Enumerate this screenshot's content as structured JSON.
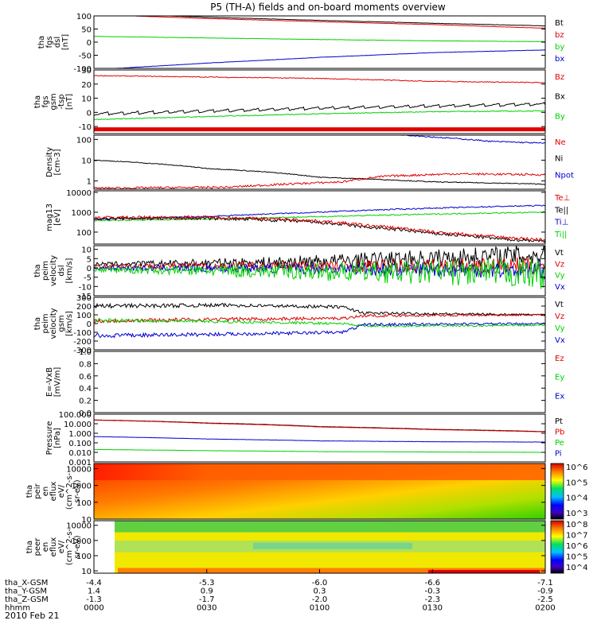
{
  "title": "P5 (TH-A) fields and on-board moments overview",
  "date": "2010 Feb 21",
  "x_axis": {
    "rows": [
      {
        "label": "tha_X-GSM",
        "values": [
          "-4.4",
          "-5.3",
          "-6.0",
          "-6.6",
          "-7.1"
        ]
      },
      {
        "label": "tha_Y-GSM",
        "values": [
          "1.4",
          "0.9",
          "0.3",
          "-0.3",
          "-0.9"
        ]
      },
      {
        "label": "tha_Z-GSM",
        "values": [
          "-1.3",
          "-1.7",
          "-2.0",
          "-2.3",
          "-2.5"
        ]
      },
      {
        "label": "hhmm",
        "values": [
          "0000",
          "0030",
          "0100",
          "0130",
          "0200"
        ]
      }
    ]
  },
  "colors": {
    "black": "#000000",
    "red": "#e00000",
    "green": "#00d000",
    "blue": "#0000d0"
  },
  "colorbar_a_ticks": [
    "10^6",
    "10^5",
    "10^4",
    "10^3"
  ],
  "colorbar_b_ticks": [
    "10^8",
    "10^7",
    "10^6",
    "10^5",
    "10^4"
  ],
  "chart_data": [
    {
      "type": "line",
      "id": "fgs_dsl",
      "ylabel": [
        "tha",
        "fgs",
        "dsl",
        "[nT]"
      ],
      "ylim": [
        -100,
        100
      ],
      "yscale": "linear",
      "ticks": [
        "100",
        "50",
        "0",
        "-50",
        "-100"
      ],
      "tick_values": [
        100,
        50,
        0,
        -50,
        -100
      ],
      "legend": [
        {
          "name": "Bt",
          "color": "black"
        },
        {
          "name": "bz",
          "color": "red"
        },
        {
          "name": "by",
          "color": "green"
        },
        {
          "name": "bx",
          "color": "blue"
        }
      ],
      "series": [
        {
          "name": "Bt",
          "color": "black",
          "x": [
            0,
            0.25,
            0.5,
            0.75,
            1
          ],
          "y": [
            110,
            95,
            83,
            72,
            62
          ],
          "noise": 0.5
        },
        {
          "name": "bz",
          "color": "red",
          "x": [
            0,
            0.25,
            0.5,
            0.75,
            1
          ],
          "y": [
            105,
            90,
            78,
            67,
            53
          ],
          "noise": 0.5
        },
        {
          "name": "by",
          "color": "green",
          "x": [
            0,
            0.25,
            0.5,
            0.75,
            1
          ],
          "y": [
            22,
            16,
            10,
            5,
            2
          ],
          "noise": 0.5
        },
        {
          "name": "bx",
          "color": "blue",
          "x": [
            0,
            0.25,
            0.5,
            0.75,
            1
          ],
          "y": [
            -105,
            -80,
            -58,
            -40,
            -30
          ],
          "noise": 0.5
        }
      ]
    },
    {
      "type": "line",
      "id": "fgs_gsm",
      "ylabel": [
        "tha",
        "fgs",
        "gsm",
        "-tsp",
        "[nT]"
      ],
      "ylim": [
        -15,
        30
      ],
      "yscale": "linear",
      "ticks": [
        "30",
        "20",
        "10",
        "0",
        "-10"
      ],
      "tick_values": [
        30,
        20,
        10,
        0,
        -10
      ],
      "legend": [
        {
          "name": "Bz",
          "color": "red"
        },
        {
          "name": "Bx",
          "color": "black"
        },
        {
          "name": "By",
          "color": "green"
        }
      ],
      "flag_bar": {
        "color": "red",
        "y": -12
      },
      "series": [
        {
          "name": "Bz",
          "color": "red",
          "x": [
            0,
            0.25,
            0.5,
            0.75,
            1
          ],
          "y": [
            26,
            25,
            24,
            22,
            21
          ],
          "noise": 0.3
        },
        {
          "name": "Bx",
          "color": "black",
          "x": [
            0,
            0.25,
            0.5,
            0.75,
            1
          ],
          "y": [
            -1,
            1,
            3,
            4.5,
            6
          ],
          "noise": 0.3,
          "sawtooth": 2
        },
        {
          "name": "By",
          "color": "green",
          "x": [
            0,
            0.25,
            0.5,
            0.75,
            1
          ],
          "y": [
            -5,
            -3,
            -1,
            0.5,
            1
          ],
          "noise": 0.3
        }
      ]
    },
    {
      "type": "line",
      "id": "density",
      "ylabel": [
        "Density",
        "[cm-3]"
      ],
      "ylim": [
        0.4,
        160
      ],
      "yscale": "log",
      "ticks": [
        "100",
        "10",
        "1"
      ],
      "tick_values": [
        100,
        10,
        1
      ],
      "legend": [
        {
          "name": "Ne",
          "color": "red"
        },
        {
          "name": "Ni",
          "color": "black"
        },
        {
          "name": "Npot",
          "color": "blue"
        }
      ],
      "series": [
        {
          "name": "Ni",
          "color": "black",
          "x": [
            0,
            0.25,
            0.5,
            0.75,
            1
          ],
          "y": [
            10,
            4,
            1.5,
            0.9,
            0.7
          ],
          "noise": 0.02
        },
        {
          "name": "Ne",
          "color": "red",
          "x": [
            0,
            0.3,
            0.55,
            0.65,
            0.8,
            1
          ],
          "y": [
            0.45,
            0.5,
            0.9,
            1.7,
            2.2,
            2.0
          ],
          "noise": 0.05
        },
        {
          "name": "Npot",
          "color": "blue",
          "x": [
            0.58,
            0.62,
            0.75,
            0.88,
            1
          ],
          "y": [
            200,
            200,
            130,
            80,
            65
          ],
          "noise": 0.03
        }
      ]
    },
    {
      "type": "line",
      "id": "temp",
      "ylabel": [
        "mag13",
        "[eV]"
      ],
      "ylim": [
        25,
        12000
      ],
      "yscale": "log",
      "ticks": [
        "10000",
        "1000",
        "100"
      ],
      "tick_values": [
        10000,
        1000,
        100
      ],
      "legend": [
        {
          "name": "Te⊥",
          "color": "red"
        },
        {
          "name": "Te||",
          "color": "black"
        },
        {
          "name": "Ti⊥",
          "color": "blue"
        },
        {
          "name": "Ti||",
          "color": "green"
        }
      ],
      "series": [
        {
          "name": "Ti⊥",
          "color": "blue",
          "x": [
            0,
            0.25,
            0.5,
            0.75,
            1
          ],
          "y": [
            450,
            600,
            1000,
            1600,
            2200
          ],
          "noise": 0.03
        },
        {
          "name": "Ti||",
          "color": "green",
          "x": [
            0,
            0.25,
            0.5,
            0.75,
            1
          ],
          "y": [
            380,
            450,
            600,
            800,
            1000
          ],
          "noise": 0.03
        },
        {
          "name": "Te||",
          "color": "black",
          "x": [
            0,
            0.25,
            0.45,
            0.6,
            0.75,
            0.9,
            1
          ],
          "y": [
            480,
            500,
            360,
            180,
            85,
            45,
            35
          ],
          "noise": 0.08
        },
        {
          "name": "Te⊥",
          "color": "red",
          "x": [
            0,
            0.25,
            0.45,
            0.6,
            0.75,
            0.9,
            1
          ],
          "y": [
            540,
            560,
            420,
            220,
            100,
            55,
            40
          ],
          "noise": 0.08
        }
      ]
    },
    {
      "type": "line",
      "id": "peim_dsl",
      "ylabel": [
        "tha",
        "peim",
        "velocity",
        "dsl",
        "[km/s]"
      ],
      "ylim": [
        -15,
        12
      ],
      "yscale": "linear",
      "ticks": [
        "10",
        "5",
        "0",
        "-5",
        "-10",
        "-15"
      ],
      "tick_values": [
        10,
        5,
        0,
        -5,
        -10,
        -15
      ],
      "legend": [
        {
          "name": "Vt",
          "color": "black"
        },
        {
          "name": "Vz",
          "color": "red"
        },
        {
          "name": "Vy",
          "color": "green"
        },
        {
          "name": "Vx",
          "color": "blue"
        }
      ],
      "series": [
        {
          "name": "Vt",
          "color": "black",
          "x": [
            0,
            0.4,
            0.7,
            1
          ],
          "y": [
            2,
            3,
            5,
            7
          ],
          "noise": 1,
          "noise_growth": 5
        },
        {
          "name": "Vz",
          "color": "red",
          "x": [
            0,
            1
          ],
          "y": [
            1,
            1
          ],
          "noise": 1,
          "noise_growth": 4
        },
        {
          "name": "Vx",
          "color": "blue",
          "x": [
            0,
            1
          ],
          "y": [
            0,
            -1
          ],
          "noise": 1,
          "noise_growth": 4
        },
        {
          "name": "Vy",
          "color": "green",
          "x": [
            0,
            1
          ],
          "y": [
            -1,
            -3
          ],
          "noise": 1.2,
          "noise_growth": 6
        }
      ]
    },
    {
      "type": "line",
      "id": "peim_gsm",
      "ylabel": [
        "tha",
        "peim",
        "velocity",
        "gsm",
        "[km/s]"
      ],
      "ylim": [
        -300,
        300
      ],
      "yscale": "linear",
      "ticks": [
        "300",
        "200",
        "100",
        "0",
        "-100",
        "-200",
        "-300"
      ],
      "tick_values": [
        300,
        200,
        100,
        0,
        -100,
        -200,
        -300
      ],
      "legend": [
        {
          "name": "Vt",
          "color": "black"
        },
        {
          "name": "Vz",
          "color": "red"
        },
        {
          "name": "Vy",
          "color": "green"
        },
        {
          "name": "Vx",
          "color": "blue"
        }
      ],
      "series": [
        {
          "name": "Vt",
          "color": "black",
          "x": [
            0,
            0.3,
            0.55,
            0.6,
            1
          ],
          "y": [
            200,
            210,
            190,
            120,
            100
          ],
          "noise": 25,
          "noise_growth": -0.6
        },
        {
          "name": "Vz",
          "color": "red",
          "x": [
            0,
            0.3,
            0.55,
            0.6,
            1
          ],
          "y": [
            30,
            50,
            60,
            90,
            100
          ],
          "noise": 25,
          "noise_growth": -0.6
        },
        {
          "name": "Vy",
          "color": "green",
          "x": [
            0,
            0.3,
            0.55,
            0.6,
            1
          ],
          "y": [
            40,
            20,
            0,
            -30,
            -20
          ],
          "noise": 20,
          "noise_growth": -0.6
        },
        {
          "name": "Vx",
          "color": "blue",
          "x": [
            0,
            0.3,
            0.55,
            0.6,
            1
          ],
          "y": [
            -140,
            -120,
            -100,
            -10,
            0
          ],
          "noise": 25,
          "noise_growth": -0.6
        }
      ]
    },
    {
      "type": "line",
      "id": "efield",
      "ylabel": [
        "E=-VxB",
        "[mV/m]"
      ],
      "ylim": [
        0,
        1
      ],
      "yscale": "linear",
      "ticks": [
        "1.0",
        "0.8",
        "0.6",
        "0.4",
        "0.2",
        "0.0"
      ],
      "tick_values": [
        1,
        0.8,
        0.6,
        0.4,
        0.2,
        0
      ],
      "legend": [
        {
          "name": "Ez",
          "color": "red"
        },
        {
          "name": "Ey",
          "color": "green"
        },
        {
          "name": "Ex",
          "color": "blue"
        }
      ],
      "series": []
    },
    {
      "type": "line",
      "id": "pressure",
      "ylabel": [
        "Pressure",
        "[nPa]"
      ],
      "ylim": [
        0.001,
        100
      ],
      "yscale": "log",
      "ticks": [
        "100.000",
        "10.000",
        "1.000",
        "0.100",
        "0.010",
        "0.001"
      ],
      "tick_values": [
        100,
        10,
        1,
        0.1,
        0.01,
        0.001
      ],
      "legend": [
        {
          "name": "Pt",
          "color": "black"
        },
        {
          "name": "Pb",
          "color": "red"
        },
        {
          "name": "Pe",
          "color": "green"
        },
        {
          "name": "Pi",
          "color": "blue"
        }
      ],
      "series": [
        {
          "name": "Pt",
          "color": "black",
          "x": [
            0,
            0.25,
            0.5,
            0.75,
            1
          ],
          "y": [
            25,
            12,
            5,
            2.6,
            1.5
          ],
          "noise": 0.01
        },
        {
          "name": "Pb",
          "color": "red",
          "x": [
            0,
            0.25,
            0.5,
            0.75,
            1
          ],
          "y": [
            24,
            11,
            4.6,
            2.4,
            1.4
          ],
          "noise": 0.01
        },
        {
          "name": "Pi",
          "color": "blue",
          "x": [
            0,
            0.25,
            0.5,
            0.75,
            1
          ],
          "y": [
            0.45,
            0.25,
            0.16,
            0.13,
            0.12
          ],
          "noise": 0.01
        },
        {
          "name": "Pe",
          "color": "green",
          "x": [
            0,
            0.25,
            0.5,
            0.75,
            1
          ],
          "y": [
            0.02,
            0.015,
            0.012,
            0.011,
            0.01
          ],
          "noise": 0.01
        }
      ]
    },
    {
      "type": "heatmap",
      "id": "peir",
      "ylabel": [
        "tha",
        "peir",
        "en",
        "eflux",
        "eV/",
        "(cm^2-s-",
        "sr-eV)"
      ],
      "ylim": [
        10,
        20000
      ],
      "yscale": "log",
      "ticks": [
        "10000",
        "1000",
        "100",
        "10"
      ],
      "tick_values": [
        10000,
        1000,
        100,
        10
      ],
      "colorbar": "a"
    },
    {
      "type": "heatmap",
      "id": "peer",
      "ylabel": [
        "tha",
        "peer",
        "en",
        "eflux",
        "eV/",
        "(cm^2-s-",
        "sr-eV)"
      ],
      "ylim": [
        7,
        20000
      ],
      "yscale": "log",
      "ticks": [
        "10000",
        "1000",
        "100",
        "10"
      ],
      "tick_values": [
        10000,
        1000,
        100,
        10
      ],
      "colorbar": "b"
    }
  ]
}
